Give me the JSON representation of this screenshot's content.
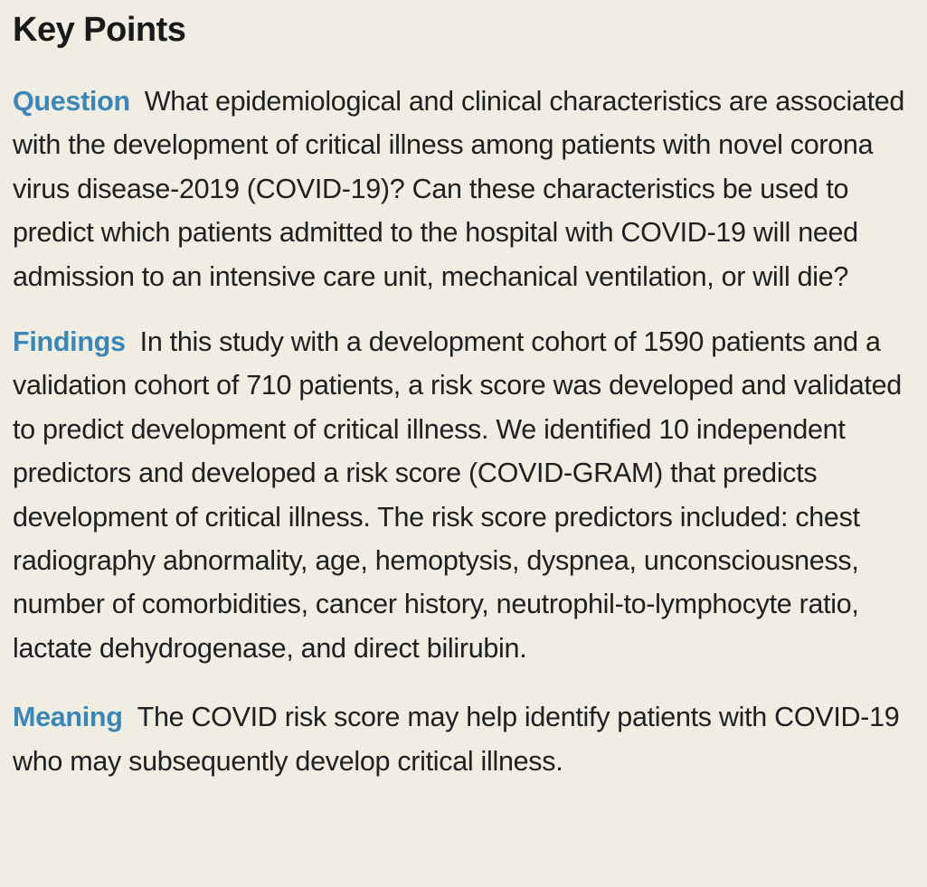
{
  "key_points": {
    "title": "Key Points",
    "question": {
      "label": "Question",
      "text": "What epidemiological and clinical characteristics are associated with the development of critical illness among patients with novel corona virus disease-2019 (COVID-19)? Can these characteristics be used to predict which patients admitted to the hospital with COVID-19 will need admission to an intensive care unit, mechanical ventilation, or will die?"
    },
    "findings": {
      "label": "Findings",
      "text": "In this study with a development cohort of 1590 patients and a validation cohort of 710 patients, a risk score was developed and validated to predict development of critical illness. We identified 10 independent predictors and developed a risk score (COVID-GRAM) that predicts development of critical illness. The risk score predictors included: chest radiography abnormality, age, hemoptysis, dyspnea, unconsciousness, number of comorbidities, cancer history, neutrophil-to-lymphocyte ratio, lactate dehydrogenase, and direct bilirubin."
    },
    "meaning": {
      "label": "Meaning",
      "text": "The COVID risk score may help identify patients with COVID-19 who may subsequently develop critical illness."
    }
  },
  "colors": {
    "background": "#f0ede3",
    "label_accent": "#3a86b7",
    "body_text": "#202020"
  }
}
